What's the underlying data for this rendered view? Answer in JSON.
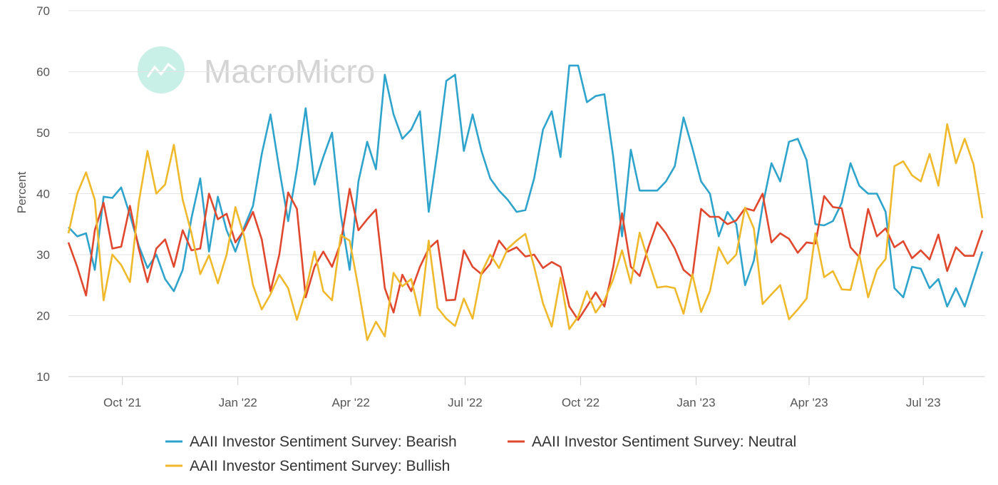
{
  "watermark": {
    "text": "MacroMicro",
    "logo_color": "#c9f0e6"
  },
  "chart_data": {
    "type": "line",
    "title": "",
    "xlabel": "",
    "ylabel": "Percent",
    "ylim": [
      10,
      70
    ],
    "yticks": [
      10,
      20,
      30,
      40,
      50,
      60,
      70
    ],
    "xticks": [
      {
        "date": "2021-10-01",
        "label": "Oct '21"
      },
      {
        "date": "2022-01-01",
        "label": "Jan '22"
      },
      {
        "date": "2022-04-01",
        "label": "Apr '22"
      },
      {
        "date": "2022-07-01",
        "label": "Jul '22"
      },
      {
        "date": "2022-10-01",
        "label": "Oct '22"
      },
      {
        "date": "2023-01-01",
        "label": "Jan '23"
      },
      {
        "date": "2023-04-01",
        "label": "Apr '23"
      },
      {
        "date": "2023-07-01",
        "label": "Jul '23"
      }
    ],
    "grid": true,
    "legend_position": "bottom",
    "x": [
      "2021-08-19",
      "2021-08-26",
      "2021-09-02",
      "2021-09-09",
      "2021-09-16",
      "2021-09-23",
      "2021-09-30",
      "2021-10-07",
      "2021-10-14",
      "2021-10-21",
      "2021-10-28",
      "2021-11-04",
      "2021-11-11",
      "2021-11-18",
      "2021-11-25",
      "2021-12-02",
      "2021-12-09",
      "2021-12-16",
      "2021-12-23",
      "2021-12-30",
      "2022-01-06",
      "2022-01-13",
      "2022-01-20",
      "2022-01-27",
      "2022-02-03",
      "2022-02-10",
      "2022-02-17",
      "2022-02-24",
      "2022-03-03",
      "2022-03-10",
      "2022-03-17",
      "2022-03-24",
      "2022-03-31",
      "2022-04-07",
      "2022-04-14",
      "2022-04-21",
      "2022-04-28",
      "2022-05-05",
      "2022-05-12",
      "2022-05-19",
      "2022-05-26",
      "2022-06-02",
      "2022-06-09",
      "2022-06-16",
      "2022-06-23",
      "2022-06-30",
      "2022-07-07",
      "2022-07-14",
      "2022-07-21",
      "2022-07-28",
      "2022-08-04",
      "2022-08-11",
      "2022-08-18",
      "2022-08-25",
      "2022-09-01",
      "2022-09-08",
      "2022-09-15",
      "2022-09-22",
      "2022-09-29",
      "2022-10-06",
      "2022-10-13",
      "2022-10-20",
      "2022-10-27",
      "2022-11-03",
      "2022-11-10",
      "2022-11-17",
      "2022-11-24",
      "2022-12-01",
      "2022-12-08",
      "2022-12-15",
      "2022-12-22",
      "2022-12-29",
      "2023-01-05",
      "2023-01-12",
      "2023-01-19",
      "2023-01-26",
      "2023-02-02",
      "2023-02-09",
      "2023-02-16",
      "2023-02-23",
      "2023-03-02",
      "2023-03-09",
      "2023-03-16",
      "2023-03-23",
      "2023-03-30",
      "2023-04-06",
      "2023-04-13",
      "2023-04-20",
      "2023-04-27",
      "2023-05-04",
      "2023-05-11",
      "2023-05-18",
      "2023-05-25",
      "2023-06-01",
      "2023-06-08",
      "2023-06-15",
      "2023-06-22",
      "2023-06-29",
      "2023-07-06",
      "2023-07-13",
      "2023-07-20",
      "2023-07-27",
      "2023-08-03",
      "2023-08-10",
      "2023-08-17"
    ],
    "series": [
      {
        "name": "AAII Investor Sentiment Survey: Bearish",
        "color": "#2ea3cc",
        "values": [
          34.5,
          33,
          33.5,
          27.5,
          39.5,
          39.3,
          41,
          36.5,
          31.5,
          27.8,
          30,
          26,
          24,
          27.5,
          36,
          42.5,
          30.5,
          39.5,
          34,
          30.5,
          34.5,
          38,
          46.5,
          53,
          44,
          35.5,
          44,
          54,
          41.5,
          46,
          50,
          36.5,
          27.5,
          42,
          48.5,
          44,
          59.5,
          53,
          49,
          50.5,
          53.5,
          37,
          47,
          58.5,
          59.5,
          47,
          53,
          47,
          42.5,
          40.5,
          39,
          37,
          37.3,
          42.5,
          50.5,
          53.5,
          46,
          61,
          61,
          55,
          56,
          56.3,
          46,
          33,
          47.2,
          40.5,
          40.5,
          40.5,
          42,
          44.5,
          52.5,
          47.5,
          42,
          40,
          33,
          37,
          35,
          25,
          29,
          38,
          45,
          42,
          48.5,
          49,
          45.5,
          35,
          34.8,
          35.5,
          38.5,
          45,
          41.3,
          40,
          40,
          37,
          24.5,
          23,
          28,
          27.7,
          24.5,
          26,
          21.5,
          24.5,
          21.5,
          26,
          30.5
        ]
      },
      {
        "name": "AAII Investor Sentiment Survey: Neutral",
        "color": "#e0482e",
        "values": [
          32,
          28,
          23.3,
          34,
          38.5,
          31,
          31.3,
          38,
          31,
          25.5,
          31,
          32.5,
          28,
          34,
          30.7,
          31,
          40,
          35.8,
          36.7,
          32,
          34,
          37,
          32.5,
          24,
          30,
          40.2,
          37.5,
          23,
          28,
          30.5,
          28,
          32,
          40.8,
          34,
          35.8,
          37.4,
          24.5,
          20.5,
          26.7,
          24,
          28,
          31,
          32.3,
          22.5,
          22.6,
          30.7,
          28,
          26.8,
          28.5,
          32.3,
          30.5,
          31.2,
          29.7,
          30,
          27.8,
          28.8,
          28,
          21.5,
          19.3,
          21.5,
          23.8,
          21.5,
          28,
          36.8,
          28,
          26.5,
          31.2,
          35.3,
          33.5,
          31,
          27.5,
          26.3,
          37.5,
          36.2,
          36.2,
          35,
          35.6,
          37.6,
          37.2,
          40,
          32,
          33.5,
          32.6,
          30.3,
          32,
          31.8,
          39.6,
          37.8,
          37.6,
          31.2,
          29.6,
          37.5,
          33,
          34.3,
          31.2,
          32.2,
          29.4,
          30.7,
          29.2,
          33.3,
          27.3,
          31.2,
          29.8,
          29.8,
          34
        ]
      },
      {
        "name": "AAII Investor Sentiment Survey: Bullish",
        "color": "#efb92b",
        "values": [
          33.5,
          40,
          43.5,
          39,
          22.5,
          30,
          28.3,
          25.5,
          38.5,
          47,
          40,
          41.5,
          48,
          39,
          33.5,
          26.8,
          29.9,
          25.3,
          30,
          37.8,
          33,
          25,
          21,
          23.5,
          26.7,
          24.5,
          19.3,
          24,
          30.5,
          24,
          22.5,
          33.2,
          32.3,
          24.5,
          16,
          19,
          16.6,
          27,
          24.8,
          26,
          20,
          32.3,
          21.3,
          19.5,
          18.3,
          22.8,
          19.5,
          27,
          30,
          27.8,
          31,
          32.3,
          33.4,
          28,
          22,
          18.2,
          26.2,
          17.8,
          19.8,
          24,
          20.5,
          22.5,
          26,
          30.7,
          25.3,
          33.6,
          29,
          24.6,
          24.8,
          24.5,
          20.3,
          26.8,
          20.6,
          24,
          31.2,
          28.5,
          30,
          37.7,
          34.3,
          21.9,
          23.5,
          25,
          19.4,
          21,
          22.8,
          33.5,
          26.3,
          27.3,
          24.3,
          24.2,
          30,
          23,
          27.5,
          29.3,
          44.5,
          45.3,
          43,
          42,
          46.5,
          41.3,
          51.4,
          45,
          49,
          44.8,
          36
        ]
      }
    ]
  }
}
